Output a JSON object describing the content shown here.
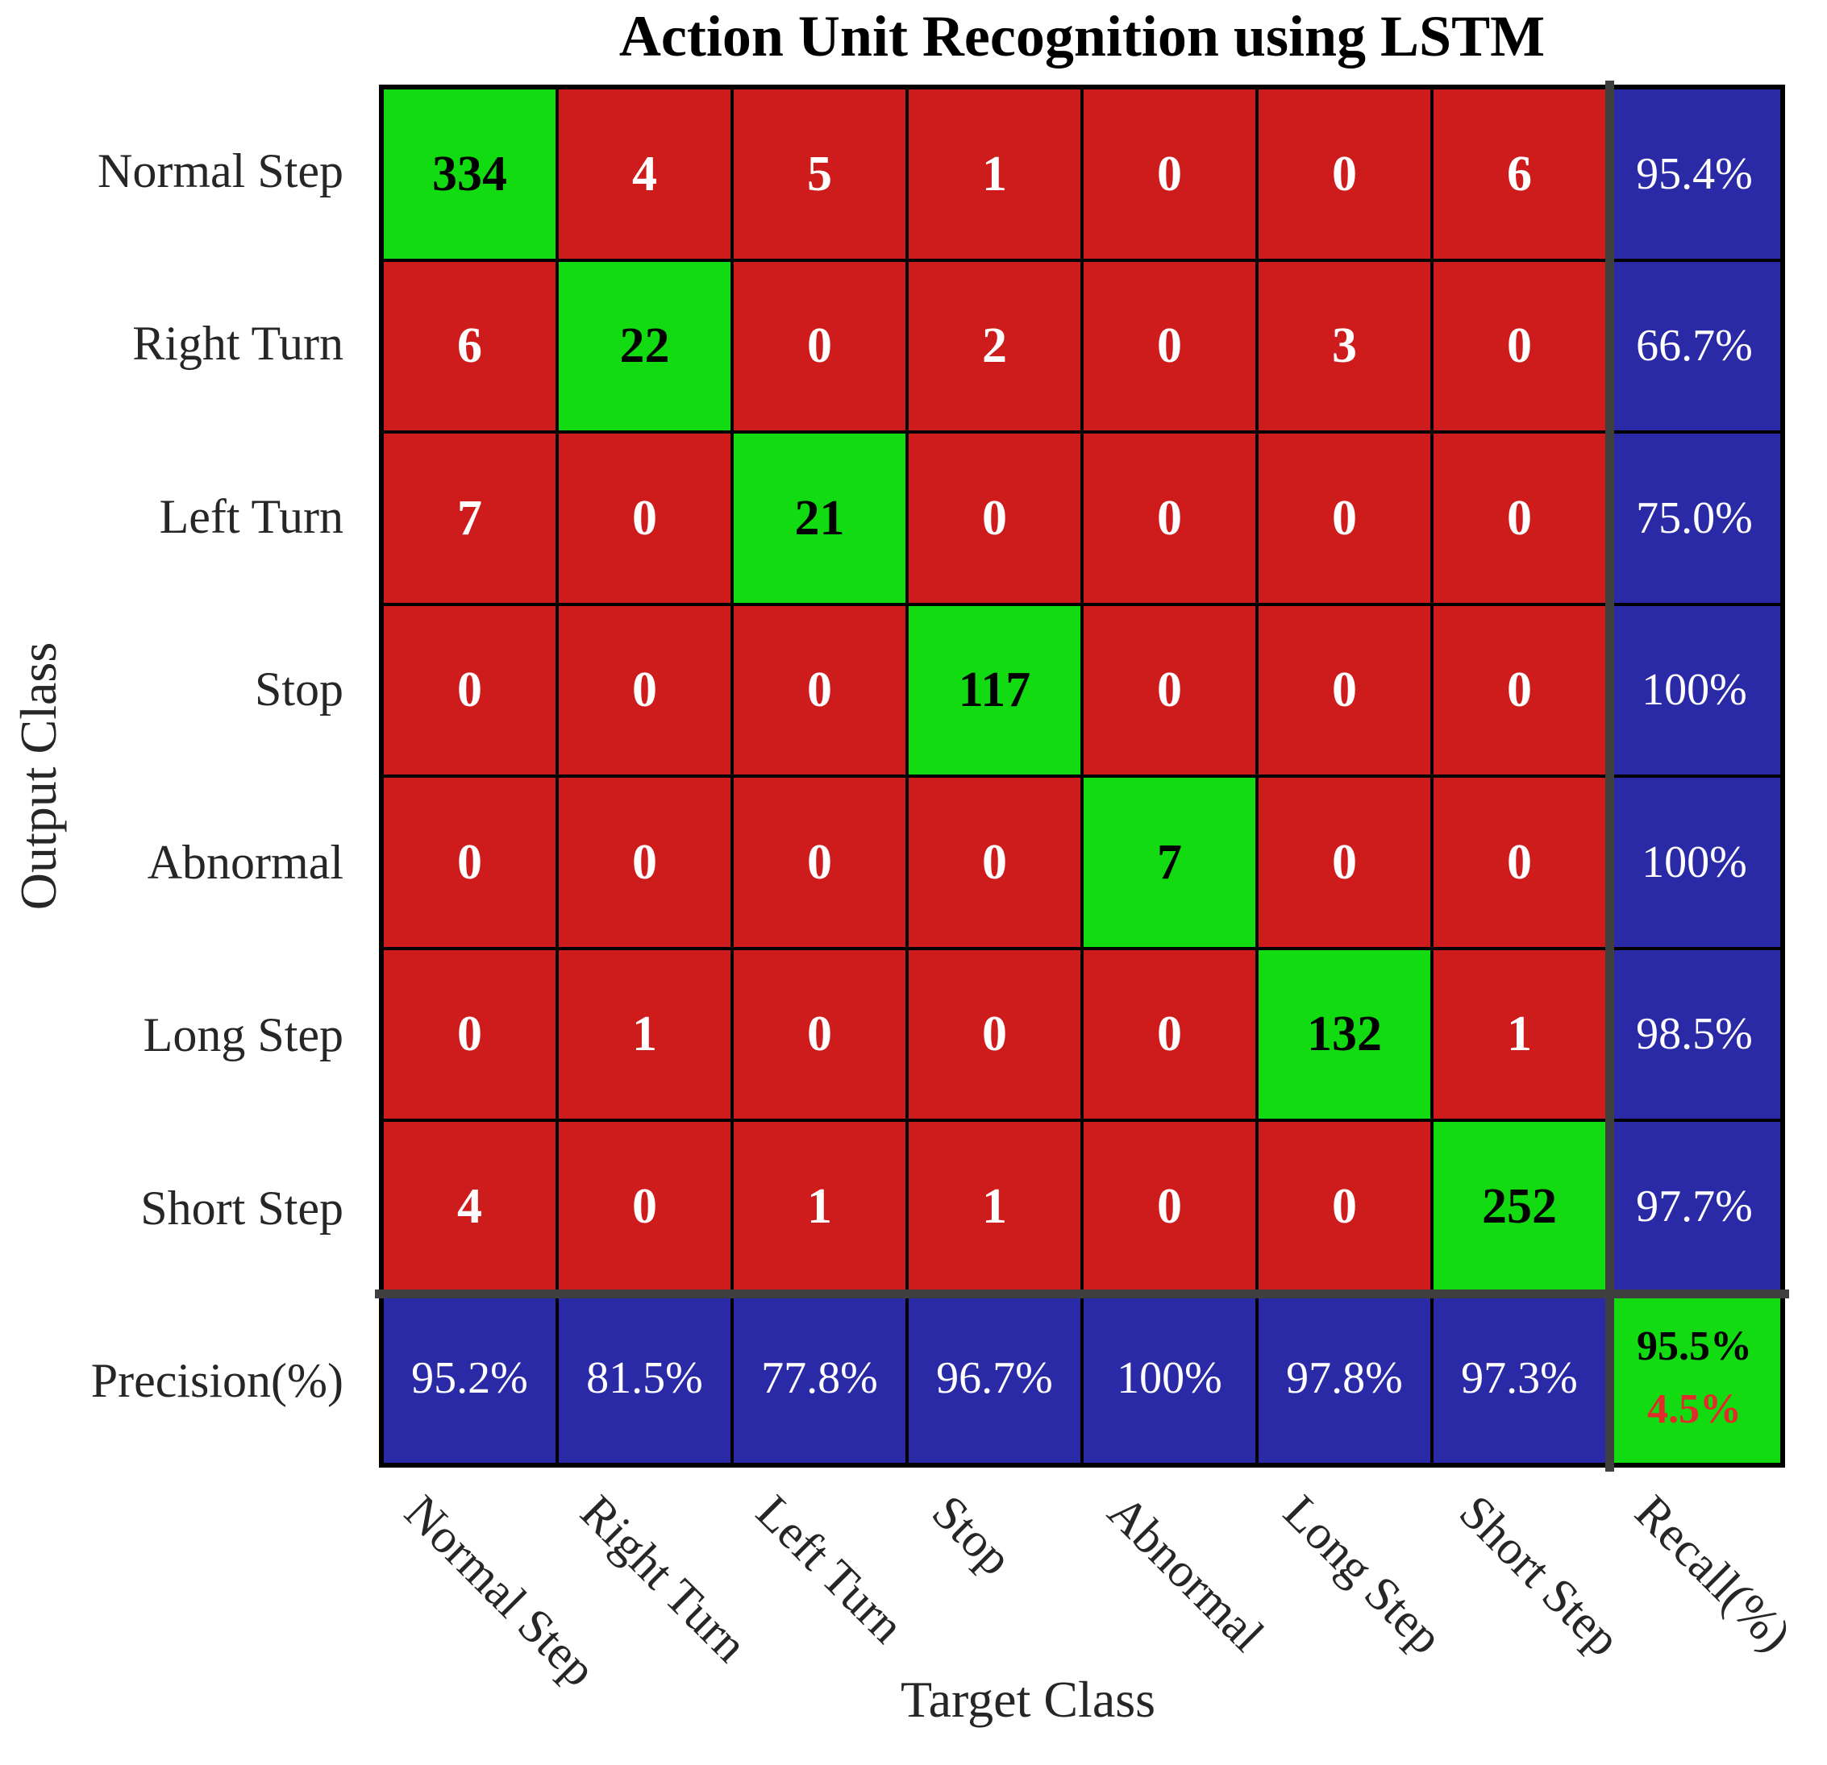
{
  "title": "Action Unit Recognition using LSTM",
  "chart_data": {
    "type": "heatmap",
    "subtype": "confusion-matrix",
    "title": "Action Unit Recognition using LSTM",
    "xlabel": "Target Class",
    "ylabel": "Output Class",
    "classes": [
      "Normal Step",
      "Right Turn",
      "Left Turn",
      "Stop",
      "Abnormal",
      "Long Step",
      "Short Step"
    ],
    "row_axis_extra_label": "Precision(%)",
    "col_axis_extra_label": "Recall(%)",
    "matrix": [
      [
        334,
        4,
        5,
        1,
        0,
        0,
        6
      ],
      [
        6,
        22,
        0,
        2,
        0,
        3,
        0
      ],
      [
        7,
        0,
        21,
        0,
        0,
        0,
        0
      ],
      [
        0,
        0,
        0,
        117,
        0,
        0,
        0
      ],
      [
        0,
        0,
        0,
        0,
        7,
        0,
        0
      ],
      [
        0,
        1,
        0,
        0,
        0,
        132,
        1
      ],
      [
        4,
        0,
        1,
        1,
        0,
        0,
        252
      ]
    ],
    "recall_pct": [
      "95.4%",
      "66.7%",
      "75.0%",
      "100%",
      "100%",
      "98.5%",
      "97.7%"
    ],
    "precision_pct": [
      "95.2%",
      "81.5%",
      "77.8%",
      "96.7%",
      "100%",
      "97.8%",
      "97.3%"
    ],
    "overall": {
      "accuracy": "95.5%",
      "error": "4.5%"
    },
    "colors": {
      "correct_green": "#12DB12",
      "incorrect_red": "#CE1B1B",
      "summary_blue": "#2B2AA6",
      "separator_gray": "#3F3F3F",
      "error_text_red": "#E02B2B"
    },
    "legend_position": "none",
    "grid": true
  }
}
